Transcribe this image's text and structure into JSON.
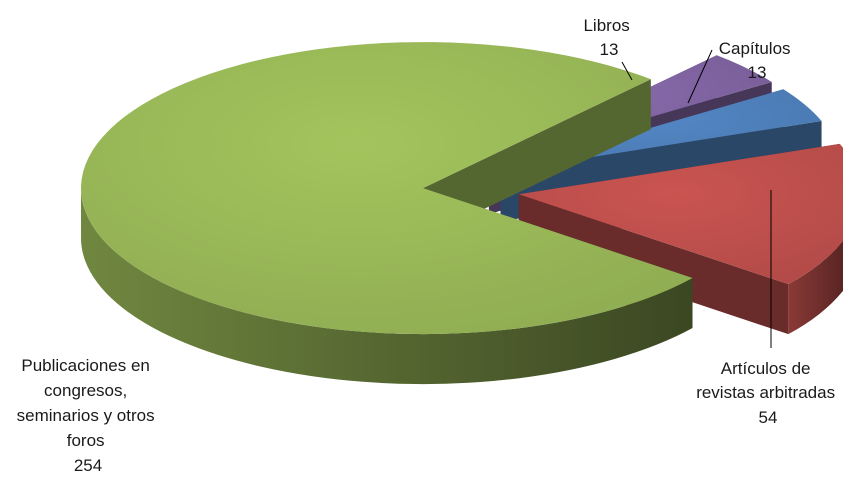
{
  "chart_data": {
    "type": "pie",
    "style": "3d-exploded",
    "title": "",
    "legend": "none",
    "slices": [
      {
        "label": "Publicaciones en congresos, seminarios y otros foros",
        "value": 254,
        "value_label": "254",
        "color": "#9BBB59",
        "label_lines": [
          "Publicaciones en",
          "congresos,",
          "seminarios y otros",
          "foros"
        ]
      },
      {
        "label": "Libros",
        "value": 13,
        "value_label": "13",
        "color": "#8064A2",
        "label_lines": [
          "Libros"
        ]
      },
      {
        "label": "Capítulos",
        "value": 13,
        "value_label": "13",
        "color": "#4F81BD",
        "label_lines": [
          "Capítulos"
        ]
      },
      {
        "label": "Artículos de revistas arbitradas",
        "value": 54,
        "value_label": "54",
        "color": "#C0504D",
        "label_lines": [
          "Artículos de",
          "revistas arbitradas"
        ]
      }
    ]
  }
}
